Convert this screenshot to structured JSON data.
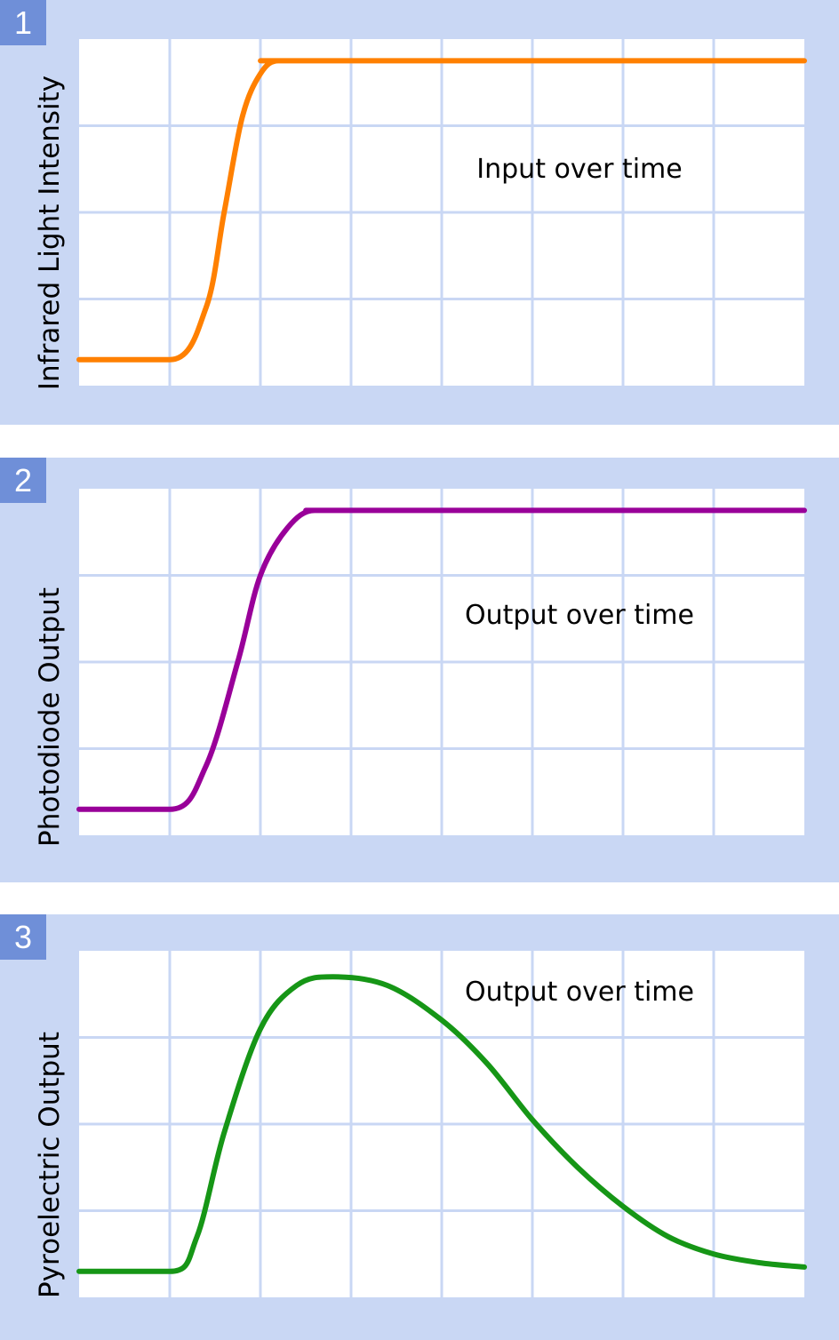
{
  "chart_data": [
    {
      "type": "line",
      "badge": "1",
      "ylabel": "Infrared Light Intensity",
      "annotation": "Input over time",
      "color": "#ff8000",
      "xlim": [
        0,
        8
      ],
      "ylim": [
        0,
        4
      ],
      "x": [
        0,
        1,
        1.4,
        1.6,
        1.8,
        2.0,
        2.2,
        2.5,
        8
      ],
      "y": [
        0.3,
        0.3,
        0.9,
        2.0,
        3.1,
        3.6,
        3.75,
        3.75,
        3.75
      ]
    },
    {
      "type": "line",
      "badge": "2",
      "ylabel": "Photodiode Output",
      "annotation": "Output over time",
      "color": "#990099",
      "xlim": [
        0,
        8
      ],
      "ylim": [
        0,
        4
      ],
      "x": [
        0,
        1,
        1.4,
        1.75,
        2.0,
        2.3,
        2.6,
        3.0,
        8
      ],
      "y": [
        0.3,
        0.3,
        0.8,
        2.0,
        3.0,
        3.55,
        3.75,
        3.75,
        3.75
      ]
    },
    {
      "type": "line",
      "badge": "3",
      "ylabel": "Pyroelectric Output",
      "annotation": "Output over time",
      "color": "#169616",
      "xlim": [
        0,
        8
      ],
      "ylim": [
        0,
        4
      ],
      "x": [
        0,
        1,
        1.3,
        1.6,
        2.0,
        2.4,
        2.8,
        3.4,
        4.0,
        4.5,
        5.0,
        5.5,
        6.0,
        6.5,
        7.0,
        7.5,
        8
      ],
      "y": [
        0.3,
        0.3,
        0.7,
        1.9,
        3.1,
        3.6,
        3.7,
        3.6,
        3.2,
        2.7,
        2.05,
        1.5,
        1.05,
        0.7,
        0.5,
        0.4,
        0.35
      ]
    }
  ]
}
